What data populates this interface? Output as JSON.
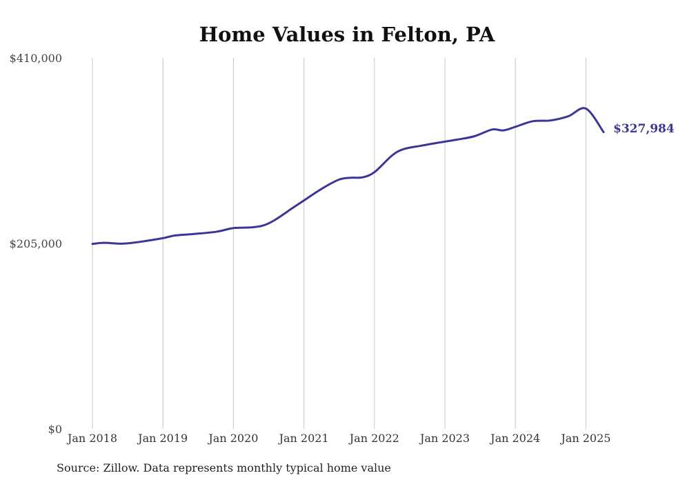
{
  "chart_data": {
    "type": "line",
    "title": "Home Values in Felton, PA",
    "xlabel": "",
    "ylabel": "",
    "ylim": [
      0,
      410000
    ],
    "y_ticks": [
      "$0",
      "$205,000",
      "$410,000"
    ],
    "y_tick_values": [
      0,
      205000,
      410000
    ],
    "x_ticks": [
      "Jan 2018",
      "Jan 2019",
      "Jan 2020",
      "Jan 2021",
      "Jan 2022",
      "Jan 2023",
      "Jan 2024",
      "Jan 2025"
    ],
    "x_tick_values": [
      2018,
      2019,
      2020,
      2021,
      2022,
      2023,
      2024,
      2025
    ],
    "grid": "vertical",
    "line_color": "#3b3596",
    "series": [
      {
        "x": [
          2018.0,
          2018.17,
          2018.42,
          2018.67,
          2019.0,
          2019.17,
          2019.42,
          2019.75,
          2020.0,
          2020.25,
          2020.42,
          2020.58,
          2020.83,
          2021.0,
          2021.25,
          2021.5,
          2021.67,
          2021.83,
          2022.0,
          2022.25,
          2022.42,
          2022.67,
          2022.92,
          2023.17,
          2023.42,
          2023.67,
          2023.83,
          2024.0,
          2024.25,
          2024.5,
          2024.75,
          2025.0,
          2025.25
        ],
        "y": [
          204500,
          205700,
          204700,
          206700,
          210800,
          213800,
          215300,
          217800,
          221900,
          222700,
          224700,
          230500,
          243600,
          252400,
          265300,
          275600,
          277600,
          278000,
          283700,
          302200,
          309300,
          313100,
          316500,
          319700,
          323500,
          330900,
          329900,
          333900,
          340100,
          340900,
          345500,
          354000,
          327984
        ]
      }
    ],
    "end_label": "$327,984",
    "source_note": "Source: Zillow. Data represents monthly typical home value"
  }
}
